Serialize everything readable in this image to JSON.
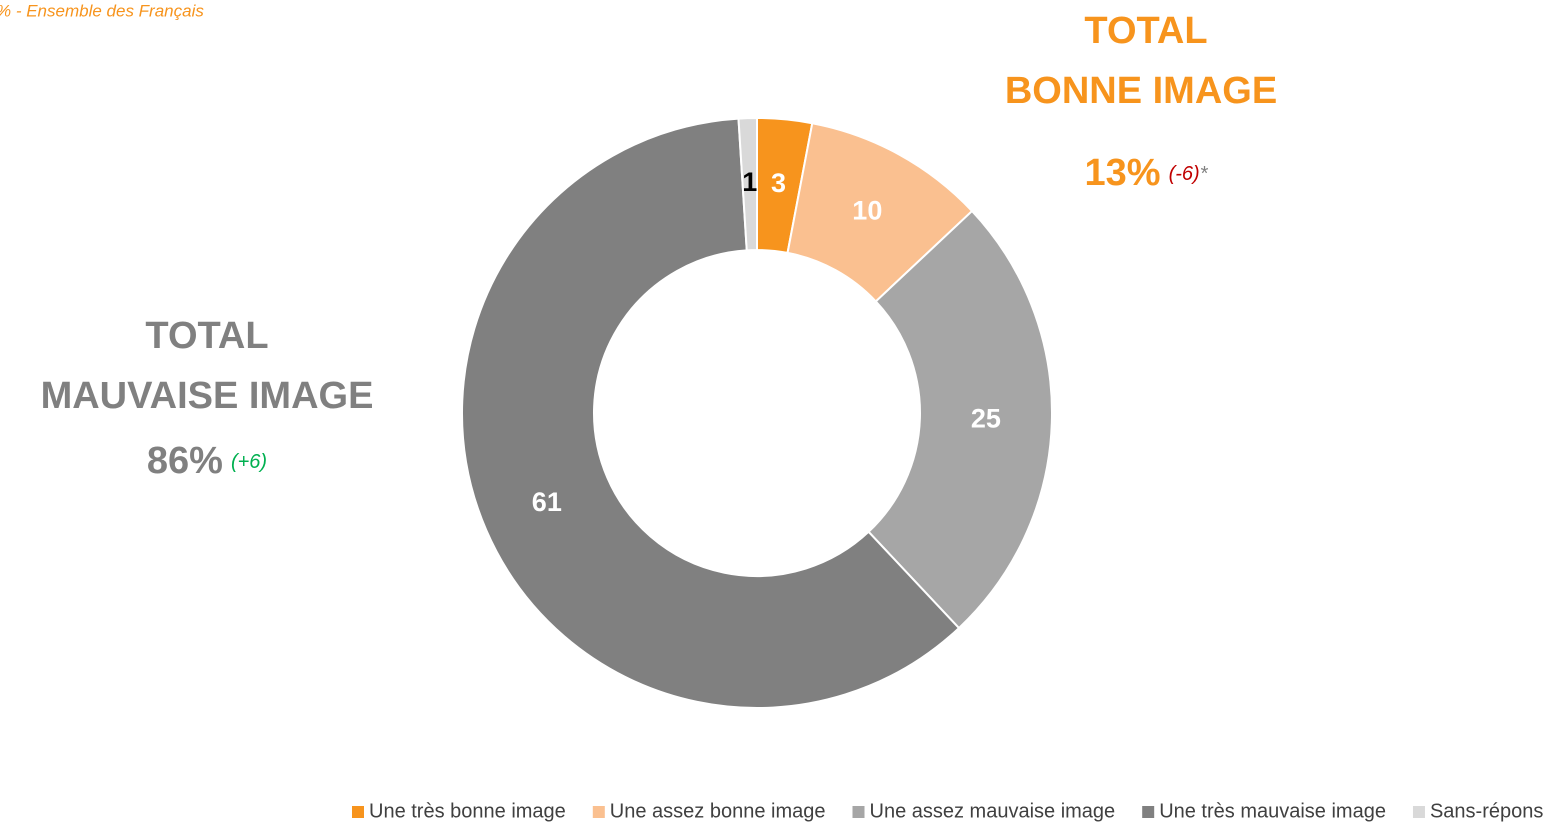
{
  "chart_data": {
    "type": "donut",
    "subtitle": "% - Ensemble des Français",
    "categories": [
      "Une très bonne image",
      "Une assez bonne image",
      "Une assez mauvaise image",
      "Une très mauvaise image",
      "Sans-réponses"
    ],
    "values": [
      3,
      10,
      25,
      61,
      1
    ],
    "colors": [
      "#f7941d",
      "#fac090",
      "#a6a6a6",
      "#808080",
      "#d9d9d9"
    ],
    "label_colors": [
      "#ffffff",
      "#ffffff",
      "#ffffff",
      "#ffffff",
      "#000000"
    ],
    "legend": "bottom",
    "annotations": [
      {
        "lines": [
          "TOTAL",
          "BONNE IMAGE"
        ],
        "total": "13%",
        "change": "(-6)",
        "note": "*"
      },
      {
        "lines": [
          "TOTAL",
          "MAUVAISE IMAGE"
        ],
        "total": "86%",
        "change": "(+6)"
      }
    ]
  }
}
